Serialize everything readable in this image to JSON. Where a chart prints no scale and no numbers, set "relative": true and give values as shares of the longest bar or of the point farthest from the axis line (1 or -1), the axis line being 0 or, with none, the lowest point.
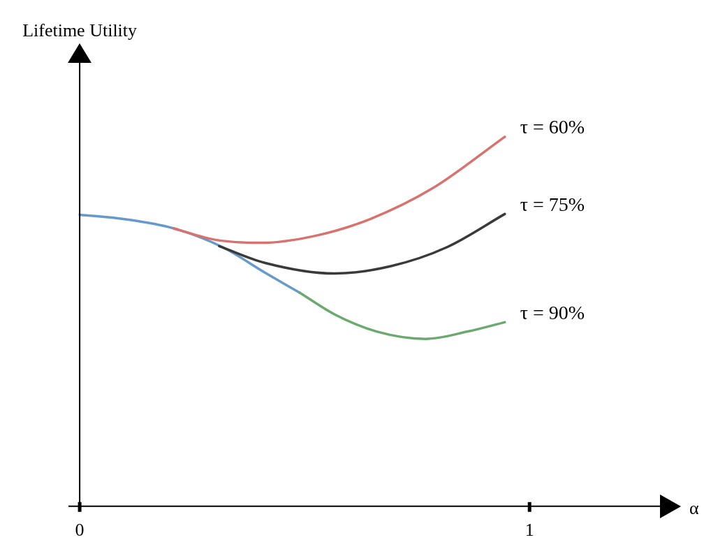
{
  "chart_data": {
    "type": "line",
    "annotations": [
      "Lifetime Utility"
    ],
    "xlabel": "α",
    "relative": true,
    "xlim": [
      -0.025,
      1.29
    ],
    "xticks": [
      0,
      1
    ],
    "legend": false,
    "marker": "none",
    "line_style": "solid",
    "series": [
      {
        "color": "#6699cc",
        "x": [
          0,
          0.1,
          0.209,
          0.318,
          0.411,
          0.489
        ],
        "values": [
          0.789,
          0.777,
          0.752,
          0.701,
          0.633,
          0.578
        ]
      },
      {
        "name": "τ = 60%",
        "color": "#d9726e",
        "x": [
          0.209,
          0.302,
          0.403,
          0.52,
          0.645,
          0.785,
          0.945
        ],
        "values": [
          0.752,
          0.721,
          0.713,
          0.731,
          0.777,
          0.861,
          1.0
        ]
      },
      {
        "name": "τ = 75%",
        "color": "#3a3a3a",
        "x": [
          0.31,
          0.411,
          0.567,
          0.692,
          0.816,
          0.945
        ],
        "values": [
          0.704,
          0.659,
          0.63,
          0.65,
          0.701,
          0.791
        ]
      },
      {
        "name": "τ = 90%",
        "color": "#6aaa6e",
        "x": [
          0.489,
          0.567,
          0.66,
          0.769,
          0.863,
          0.945
        ],
        "values": [
          0.578,
          0.519,
          0.473,
          0.453,
          0.473,
          0.498
        ]
      }
    ]
  }
}
